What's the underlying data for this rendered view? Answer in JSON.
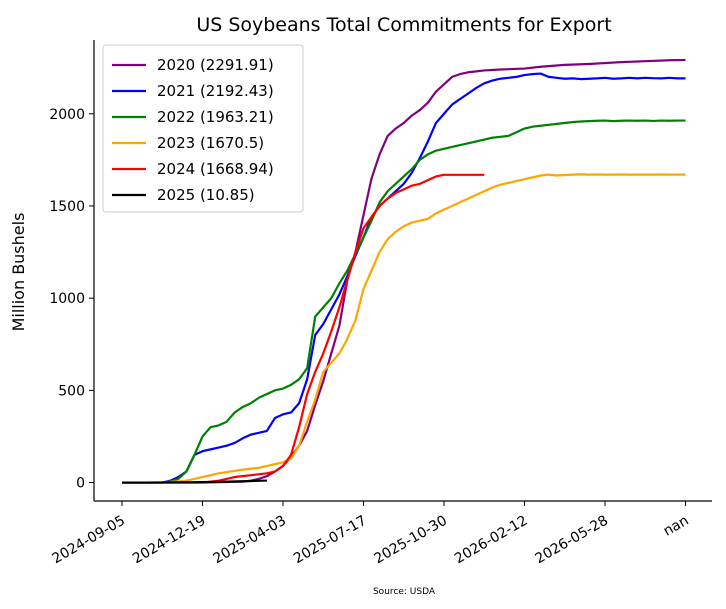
{
  "chart_data": {
    "type": "line",
    "title": "US Soybeans Total Commitments for Export",
    "xlabel": "",
    "ylabel": "Million Bushels",
    "source": "Source: USDA",
    "ylim": [
      -100,
      2400
    ],
    "yticks": [
      0,
      500,
      1000,
      1500,
      2000
    ],
    "xtick_labels": [
      "2024-09-05",
      "2024-12-19",
      "2025-04-03",
      "2025-07-17",
      "2025-10-30",
      "2026-02-12",
      "2026-05-28",
      "nan"
    ],
    "grid": false,
    "legend_position": "top-left",
    "series": [
      {
        "name": "2020 (2291.91)",
        "color": "#800080",
        "x": [
          0,
          5,
          10,
          15,
          16,
          17,
          18,
          19,
          20,
          21,
          22,
          23,
          24,
          25,
          26,
          27,
          28,
          29,
          30,
          31,
          32,
          33,
          34,
          35,
          36,
          37,
          38,
          39,
          40,
          41,
          42,
          43,
          44,
          45,
          47,
          50,
          52,
          55,
          58,
          60,
          62,
          65,
          68,
          70
        ],
        "y": [
          0,
          0,
          0,
          5,
          10,
          20,
          35,
          60,
          90,
          140,
          200,
          280,
          420,
          550,
          700,
          850,
          1100,
          1250,
          1450,
          1650,
          1780,
          1880,
          1920,
          1950,
          1990,
          2020,
          2060,
          2120,
          2160,
          2200,
          2215,
          2225,
          2230,
          2235,
          2240,
          2245,
          2255,
          2265,
          2270,
          2275,
          2280,
          2285,
          2290,
          2292
        ]
      },
      {
        "name": "2021 (2192.43)",
        "color": "#0000ff",
        "x": [
          0,
          5,
          6,
          7,
          8,
          9,
          10,
          11,
          12,
          13,
          14,
          15,
          16,
          17,
          18,
          19,
          20,
          21,
          22,
          23,
          24,
          25,
          26,
          27,
          28,
          29,
          30,
          31,
          32,
          33,
          34,
          35,
          36,
          37,
          38,
          39,
          40,
          41,
          42,
          43,
          44,
          45,
          46,
          47,
          48,
          49,
          50,
          51,
          52,
          53,
          54,
          55,
          56,
          57,
          58,
          59,
          60,
          61,
          62,
          63,
          64,
          65,
          66,
          67,
          68,
          69,
          70
        ],
        "y": [
          0,
          0,
          10,
          30,
          60,
          150,
          170,
          180,
          190,
          200,
          215,
          240,
          260,
          270,
          280,
          350,
          370,
          380,
          430,
          560,
          800,
          860,
          940,
          1020,
          1120,
          1230,
          1330,
          1440,
          1500,
          1540,
          1580,
          1620,
          1680,
          1760,
          1850,
          1950,
          2000,
          2050,
          2080,
          2110,
          2140,
          2165,
          2180,
          2190,
          2195,
          2200,
          2210,
          2215,
          2218,
          2200,
          2195,
          2190,
          2192,
          2188,
          2190,
          2192,
          2195,
          2190,
          2192,
          2195,
          2192,
          2195,
          2193,
          2192,
          2195,
          2192,
          2192
        ]
      },
      {
        "name": "2022 (1963.21)",
        "color": "#008000",
        "x": [
          0,
          5,
          6,
          7,
          8,
          9,
          10,
          11,
          12,
          13,
          14,
          15,
          16,
          17,
          18,
          19,
          20,
          21,
          22,
          23,
          24,
          25,
          26,
          27,
          28,
          29,
          30,
          31,
          32,
          33,
          34,
          35,
          36,
          37,
          38,
          39,
          40,
          41,
          42,
          43,
          44,
          45,
          46,
          47,
          48,
          49,
          50,
          51,
          52,
          53,
          54,
          55,
          56,
          57,
          58,
          59,
          60,
          61,
          62,
          63,
          64,
          65,
          66,
          67,
          68,
          69,
          70
        ],
        "y": [
          0,
          0,
          5,
          20,
          60,
          150,
          250,
          300,
          310,
          330,
          380,
          410,
          430,
          460,
          480,
          500,
          510,
          530,
          560,
          620,
          900,
          950,
          1000,
          1080,
          1150,
          1240,
          1330,
          1420,
          1520,
          1580,
          1620,
          1660,
          1700,
          1750,
          1780,
          1800,
          1810,
          1820,
          1830,
          1840,
          1850,
          1860,
          1870,
          1875,
          1880,
          1900,
          1920,
          1930,
          1935,
          1940,
          1945,
          1950,
          1955,
          1958,
          1960,
          1962,
          1963,
          1960,
          1962,
          1963,
          1962,
          1963,
          1961,
          1963,
          1962,
          1963,
          1963
        ]
      },
      {
        "name": "2023 (1670.5)",
        "color": "#ffa500",
        "x": [
          0,
          5,
          8,
          10,
          12,
          15,
          17,
          18,
          19,
          20,
          21,
          22,
          23,
          24,
          25,
          26,
          27,
          28,
          29,
          30,
          31,
          32,
          33,
          34,
          35,
          36,
          37,
          38,
          39,
          40,
          41,
          42,
          43,
          44,
          45,
          46,
          47,
          48,
          49,
          50,
          51,
          52,
          53,
          54,
          55,
          56,
          57,
          58,
          59,
          60,
          61,
          62,
          63,
          64,
          65,
          66,
          67,
          68,
          69,
          70
        ],
        "y": [
          0,
          0,
          10,
          30,
          50,
          70,
          80,
          90,
          100,
          110,
          130,
          200,
          330,
          450,
          600,
          650,
          700,
          780,
          880,
          1050,
          1150,
          1250,
          1320,
          1360,
          1390,
          1410,
          1420,
          1430,
          1460,
          1480,
          1500,
          1520,
          1540,
          1560,
          1580,
          1600,
          1615,
          1625,
          1635,
          1645,
          1655,
          1665,
          1670,
          1665,
          1668,
          1670,
          1672,
          1670,
          1671,
          1670,
          1670,
          1671,
          1670,
          1670,
          1670,
          1670,
          1671,
          1670,
          1670,
          1670
        ]
      },
      {
        "name": "2024 (1668.94)",
        "color": "#ff0000",
        "x": [
          0,
          5,
          10,
          12,
          14,
          16,
          18,
          19,
          20,
          21,
          22,
          23,
          24,
          25,
          26,
          27,
          28,
          29,
          30,
          31,
          32,
          33,
          34,
          35,
          36,
          37,
          38,
          39,
          40,
          41,
          42,
          43,
          44,
          45
        ],
        "y": [
          0,
          0,
          0,
          10,
          30,
          40,
          50,
          60,
          90,
          150,
          300,
          480,
          600,
          700,
          820,
          950,
          1100,
          1250,
          1380,
          1440,
          1500,
          1540,
          1570,
          1590,
          1610,
          1620,
          1640,
          1660,
          1669,
          1669,
          1669,
          1669,
          1669,
          1669
        ]
      },
      {
        "name": "2025 (10.85)",
        "color": "#000000",
        "x": [
          0,
          3,
          6,
          9,
          12,
          15,
          18
        ],
        "y": [
          0,
          0,
          1,
          2,
          4,
          7,
          10.85
        ]
      }
    ]
  }
}
